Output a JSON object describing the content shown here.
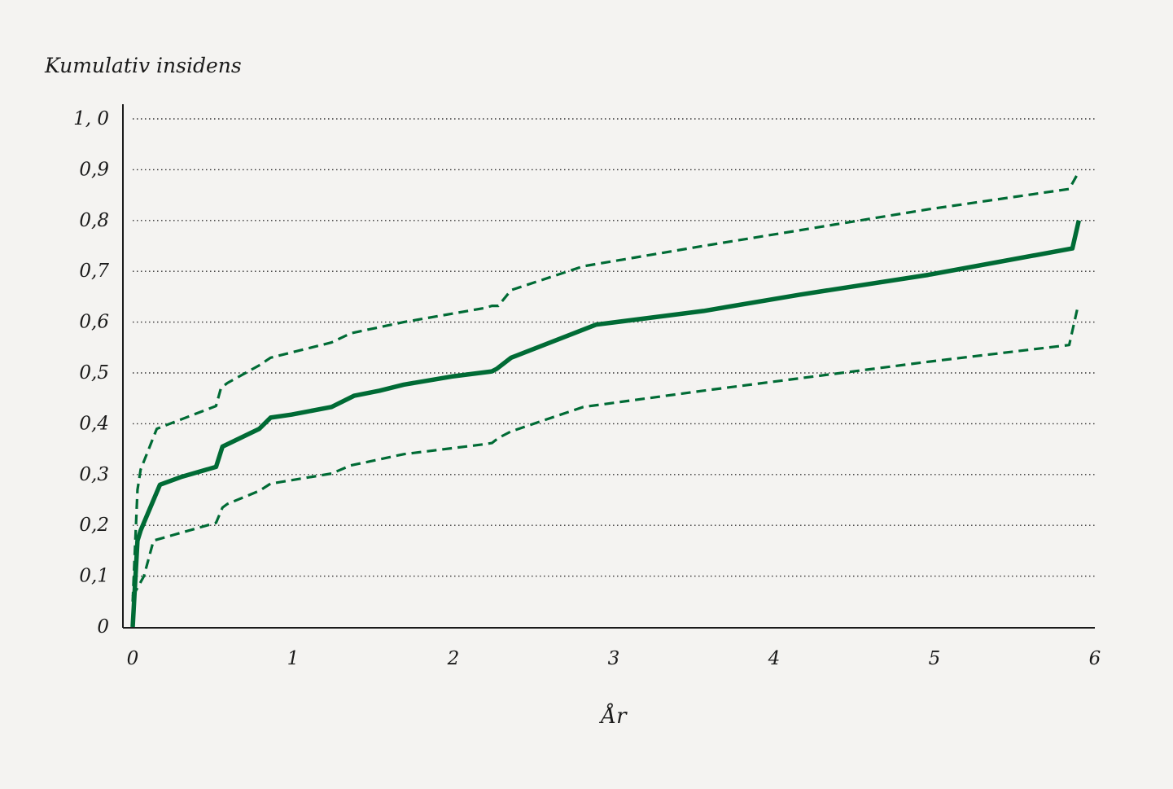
{
  "chart_data": {
    "type": "line",
    "ylabel": "Kumulativ insidens",
    "xlabel": "År",
    "xlim": [
      0,
      6
    ],
    "ylim": [
      0,
      1.0
    ],
    "x_ticks": [
      "0",
      "1",
      "2",
      "3",
      "4",
      "5",
      "6"
    ],
    "y_ticks": [
      "0",
      "0,1",
      "0,2",
      "0,3",
      "0,4",
      "0,5",
      "0,6",
      "0,7",
      "0,8",
      "0,9",
      "1, 0"
    ],
    "grid": "horizontal-dotted",
    "colors": {
      "line": "#006b35",
      "grid": "#333333",
      "axis": "#1a1a1a",
      "background": "#f4f3f1"
    },
    "series": [
      {
        "style": "solid",
        "x": [
          0,
          0.03,
          0.05,
          0.17,
          0.3,
          0.52,
          0.56,
          0.79,
          0.86,
          0.99,
          1.24,
          1.38,
          1.54,
          1.69,
          1.99,
          2.24,
          2.27,
          2.36,
          2.89,
          3.56,
          4.16,
          4.96,
          5.86,
          5.9
        ],
        "y": [
          0,
          0.17,
          0.19,
          0.28,
          0.295,
          0.315,
          0.355,
          0.39,
          0.412,
          0.418,
          0.433,
          0.455,
          0.465,
          0.477,
          0.493,
          0.503,
          0.508,
          0.53,
          0.595,
          0.622,
          0.654,
          0.693,
          0.745,
          0.8
        ]
      },
      {
        "style": "dashed",
        "x": [
          0,
          0.03,
          0.05,
          0.15,
          0.52,
          0.55,
          0.59,
          0.79,
          0.86,
          1.24,
          1.36,
          1.54,
          1.69,
          2.2,
          2.24,
          2.28,
          2.36,
          2.81,
          3.56,
          4.96,
          5.84,
          5.89
        ],
        "y": [
          0.05,
          0.27,
          0.31,
          0.39,
          0.435,
          0.47,
          0.48,
          0.515,
          0.53,
          0.56,
          0.578,
          0.59,
          0.6,
          0.628,
          0.632,
          0.632,
          0.663,
          0.71,
          0.75,
          0.822,
          0.862,
          0.89
        ]
      },
      {
        "style": "dashed",
        "x": [
          0,
          0.07,
          0.13,
          0.52,
          0.56,
          0.59,
          0.79,
          0.86,
          1.24,
          1.36,
          1.54,
          1.69,
          2.2,
          2.24,
          2.28,
          2.36,
          2.81,
          3.56,
          4.96,
          5.84,
          5.89
        ],
        "y": [
          0.06,
          0.1,
          0.17,
          0.205,
          0.235,
          0.242,
          0.268,
          0.282,
          0.302,
          0.318,
          0.33,
          0.34,
          0.36,
          0.362,
          0.372,
          0.385,
          0.433,
          0.465,
          0.522,
          0.555,
          0.625
        ]
      }
    ]
  }
}
